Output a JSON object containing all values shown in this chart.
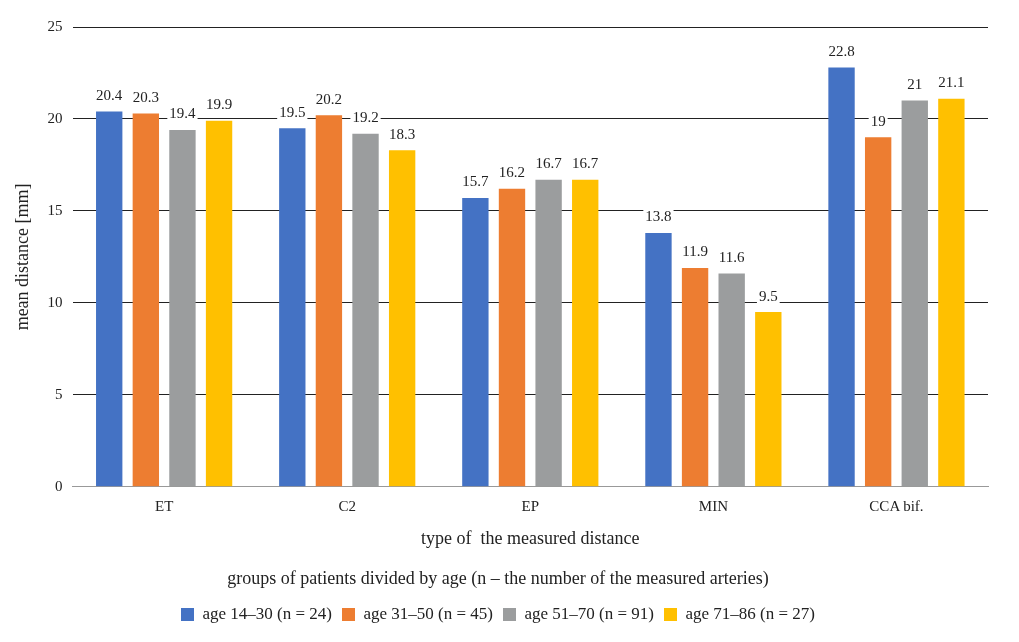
{
  "chart_data": {
    "type": "bar",
    "xlabel": "type of  the measured distance",
    "ylabel": "mean distance [mm]",
    "legend_title": "groups of patients divided by age (n – the number of the measured arteries)",
    "categories": [
      "ET",
      "C2",
      "EP",
      "MIN",
      "CCA bif."
    ],
    "series": [
      {
        "name": "age 14–30 (n = 24)",
        "color": "#4472c4",
        "values": [
          20.4,
          19.5,
          15.7,
          13.8,
          22.8
        ]
      },
      {
        "name": "age 31–50 (n = 45)",
        "color": "#ed7d31",
        "values": [
          20.3,
          20.2,
          16.2,
          11.9,
          19
        ]
      },
      {
        "name": "age 51–70 (n = 91)",
        "color": "#9b9d9e",
        "values": [
          19.4,
          19.2,
          16.7,
          11.6,
          21
        ]
      },
      {
        "name": "age 71–86 (n = 27)",
        "color": "#ffc000",
        "values": [
          19.9,
          18.3,
          16.7,
          9.5,
          21.1
        ]
      }
    ],
    "ylim": [
      0,
      25
    ],
    "yticks": [
      0,
      5,
      10,
      15,
      20,
      25
    ],
    "grid": "y",
    "legend": "bottom",
    "data_labels": true
  }
}
